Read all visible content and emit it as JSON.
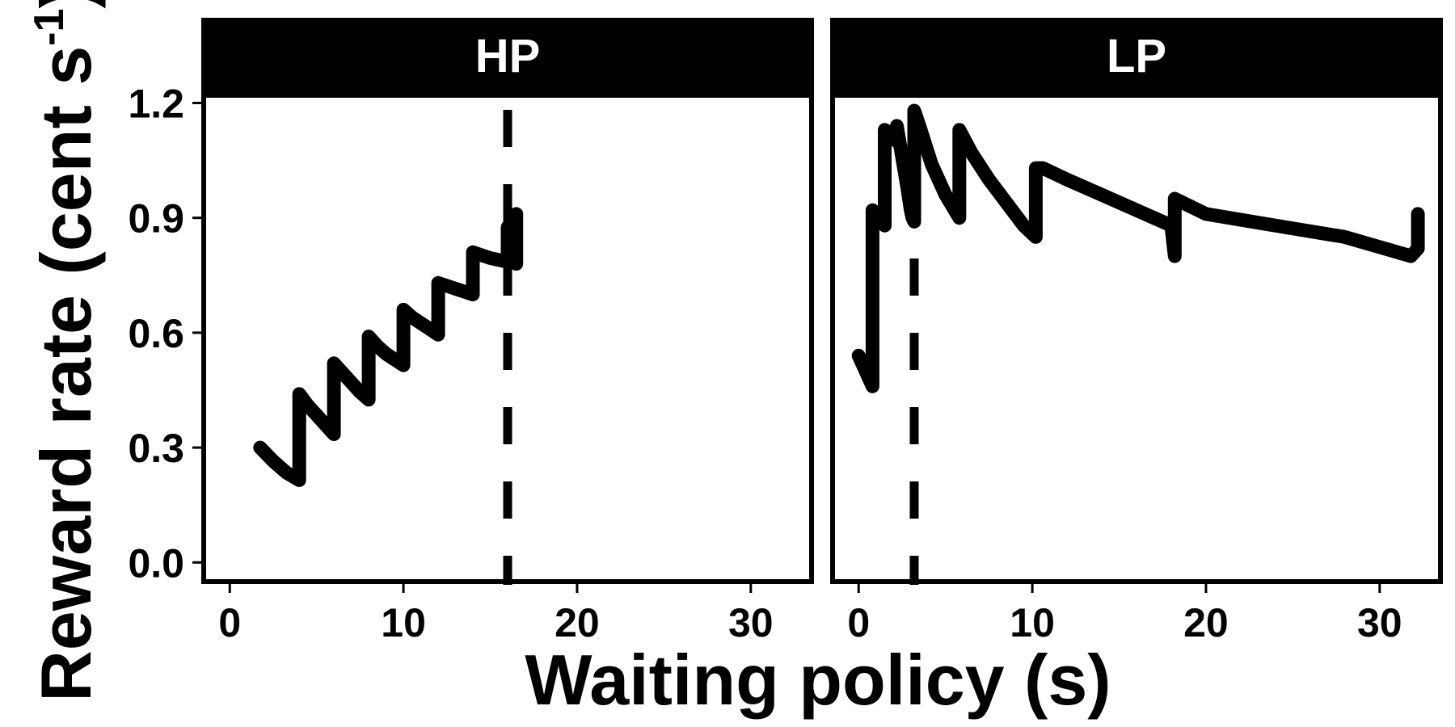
{
  "chart_data": {
    "type": "line",
    "ylabel": "Reward rate (cent s",
    "ylabel_superscript": "-1",
    "ylabel_close": ")",
    "xlabel": "Waiting policy (s)",
    "ylim": [
      -0.05,
      1.22
    ],
    "yticks": [
      0.0,
      0.3,
      0.6,
      0.9,
      1.2
    ],
    "ytick_labels": [
      "0.0",
      "0.3",
      "0.6",
      "0.9",
      "1.2"
    ],
    "xlim": [
      -1.5,
      33.5
    ],
    "xticks": [
      0,
      10,
      20,
      30
    ],
    "xtick_labels": [
      "0",
      "10",
      "20",
      "30"
    ],
    "grid": false,
    "legend": "none",
    "line_color": "#000000",
    "panels": [
      {
        "name": "HP",
        "vline_x": 16,
        "x": [
          1.75,
          2.5,
          3.25,
          4.0,
          4.0,
          4.5,
          5.0,
          5.5,
          6.0,
          6.0,
          6.5,
          7.0,
          7.5,
          8.0,
          8.0,
          8.5,
          9.0,
          9.5,
          10.0,
          10.0,
          10.5,
          11.0,
          11.5,
          12.0,
          12.0,
          13.0,
          14.0,
          14.0,
          15.0,
          16.0,
          16.0,
          16.5,
          16.5
        ],
        "y": [
          0.3,
          0.265,
          0.235,
          0.215,
          0.44,
          0.41,
          0.385,
          0.36,
          0.335,
          0.52,
          0.495,
          0.47,
          0.445,
          0.425,
          0.59,
          0.565,
          0.545,
          0.53,
          0.515,
          0.66,
          0.64,
          0.625,
          0.61,
          0.595,
          0.73,
          0.715,
          0.7,
          0.81,
          0.795,
          0.785,
          0.875,
          0.91,
          0.78
        ]
      },
      {
        "name": "LP",
        "vline_x": 3.2,
        "x": [
          0.0,
          0.4,
          0.8,
          0.8,
          1.15,
          1.5,
          1.5,
          1.85,
          2.2,
          2.2,
          2.5,
          2.8,
          3.0,
          3.1,
          3.2,
          3.2,
          3.5,
          4.2,
          5.0,
          5.8,
          5.8,
          6.5,
          7.5,
          8.5,
          9.5,
          10.2,
          10.2,
          10.6,
          12.0,
          14.0,
          16.0,
          18.0,
          18.2,
          18.2,
          20.0,
          24.0,
          28.0,
          31.8,
          32.2,
          32.2
        ],
        "y": [
          0.54,
          0.5,
          0.46,
          0.92,
          0.9,
          0.88,
          1.13,
          1.12,
          1.1,
          1.14,
          1.06,
          0.98,
          0.92,
          0.9,
          0.89,
          1.18,
          1.14,
          1.04,
          0.96,
          0.9,
          1.13,
          1.07,
          1.0,
          0.94,
          0.88,
          0.85,
          1.03,
          1.03,
          1.0,
          0.96,
          0.92,
          0.88,
          0.8,
          0.95,
          0.91,
          0.88,
          0.85,
          0.8,
          0.82,
          0.91
        ]
      }
    ]
  }
}
